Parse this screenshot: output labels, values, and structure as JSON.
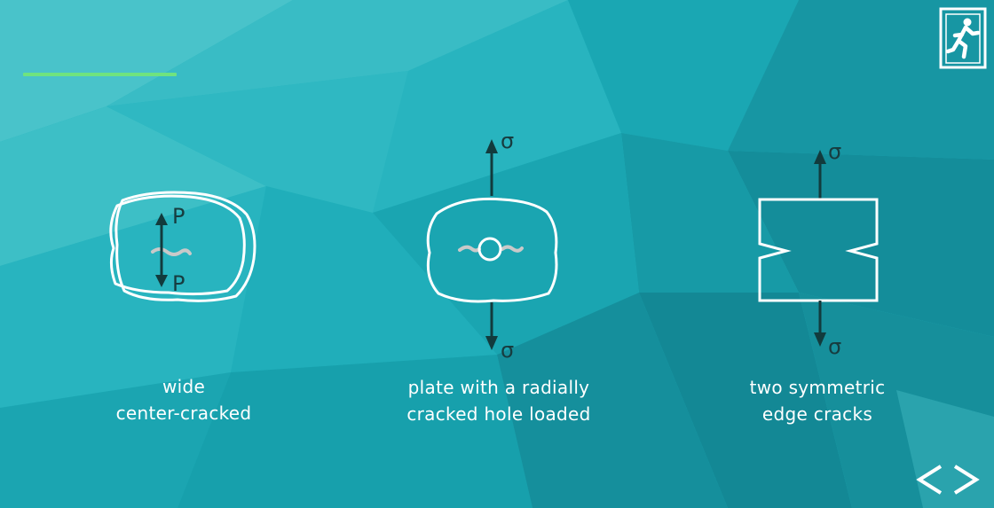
{
  "colors": {
    "accent_line": "#6fe37f",
    "shape_outline": "#ffffff",
    "arrow": "#123b3d",
    "crack": "#c9c9c9",
    "caption_text": "#ffffff",
    "nav_icon": "#ffffff"
  },
  "header": {
    "exit_icon": "exit-running-man-icon"
  },
  "diagrams": [
    {
      "id": "wide-center-cracked",
      "load_top": "P",
      "load_bottom": "P",
      "caption_line1": "wide",
      "caption_line2": "center-cracked"
    },
    {
      "id": "radially-cracked-hole",
      "load_top": "σ",
      "load_bottom": "σ",
      "caption_line1": "plate with a radially",
      "caption_line2": "cracked hole loaded"
    },
    {
      "id": "two-symmetric-edge-cracks",
      "load_top": "σ",
      "load_bottom": "σ",
      "caption_line1": "two symmetric",
      "caption_line2": "edge cracks"
    }
  ],
  "navigation": {
    "prev_label": "<",
    "next_label": ">"
  }
}
